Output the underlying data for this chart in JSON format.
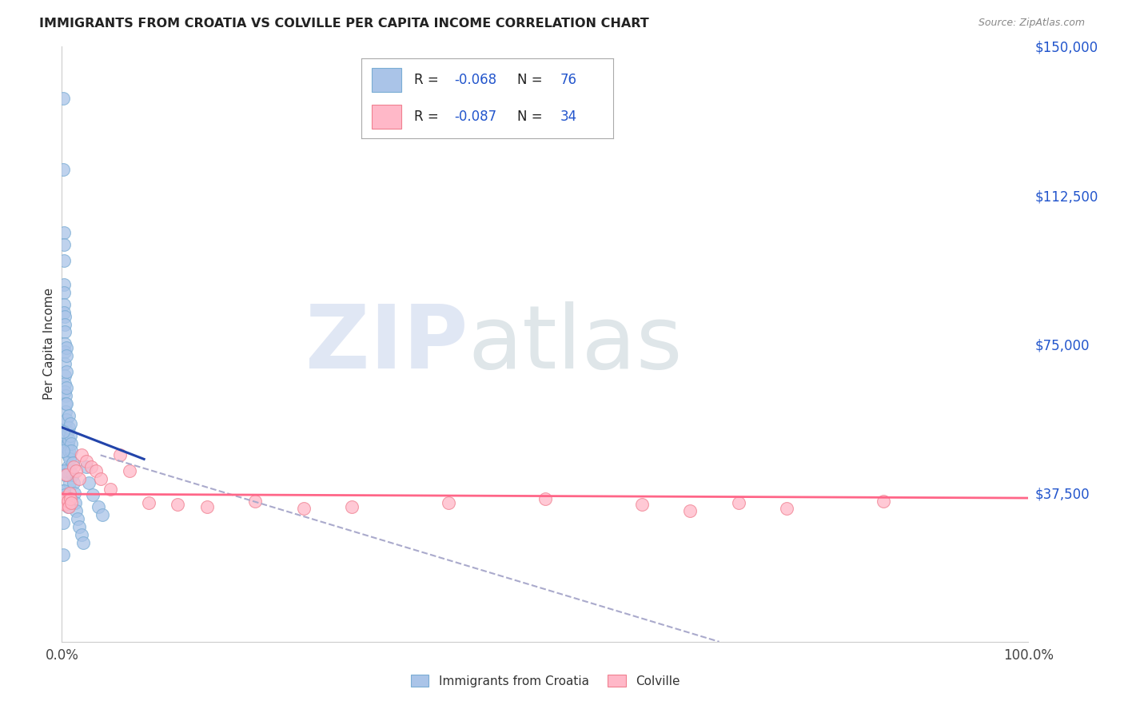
{
  "title": "IMMIGRANTS FROM CROATIA VS COLVILLE PER CAPITA INCOME CORRELATION CHART",
  "source": "Source: ZipAtlas.com",
  "ylabel": "Per Capita Income",
  "xlim": [
    0,
    1
  ],
  "ylim": [
    0,
    150000
  ],
  "yticks_right": [
    0,
    37500,
    75000,
    112500,
    150000
  ],
  "ytick_labels_right": [
    "",
    "$37,500",
    "$75,000",
    "$112,500",
    "$150,000"
  ],
  "background_color": "#ffffff",
  "grid_color": "#dddddd",
  "blue_scatter_color": "#aac4e8",
  "blue_scatter_edge": "#7aadd4",
  "pink_scatter_color": "#ffb8c8",
  "pink_scatter_edge": "#f08090",
  "blue_line_color": "#2244aa",
  "pink_line_color": "#ff6688",
  "dashed_line_color": "#aaaacc",
  "legend_box_color": "#cccccc",
  "text_color_dark": "#222222",
  "text_color_blue": "#2255cc",
  "series1_name": "Immigrants from Croatia",
  "series2_name": "Colville",
  "r1": "-0.068",
  "n1": "76",
  "r2": "-0.087",
  "n2": "34",
  "blue_trend_x": [
    0.0,
    0.085
  ],
  "blue_trend_y": [
    54000,
    46000
  ],
  "pink_trend_x": [
    0.0,
    1.0
  ],
  "pink_trend_y": [
    37200,
    36200
  ],
  "dashed_trend_x": [
    0.04,
    0.68
  ],
  "dashed_trend_y": [
    47000,
    0
  ],
  "blue_x": [
    0.001,
    0.001,
    0.001,
    0.001,
    0.001,
    0.001,
    0.001,
    0.001,
    0.002,
    0.002,
    0.002,
    0.002,
    0.002,
    0.002,
    0.002,
    0.003,
    0.003,
    0.003,
    0.003,
    0.003,
    0.003,
    0.003,
    0.003,
    0.003,
    0.004,
    0.004,
    0.004,
    0.004,
    0.004,
    0.004,
    0.005,
    0.005,
    0.005,
    0.005,
    0.005,
    0.005,
    0.006,
    0.006,
    0.006,
    0.006,
    0.006,
    0.007,
    0.007,
    0.007,
    0.007,
    0.008,
    0.008,
    0.008,
    0.009,
    0.009,
    0.01,
    0.01,
    0.011,
    0.011,
    0.012,
    0.013,
    0.014,
    0.015,
    0.016,
    0.018,
    0.02,
    0.022,
    0.025,
    0.028,
    0.032,
    0.038,
    0.001,
    0.001,
    0.002,
    0.002,
    0.003,
    0.003,
    0.004,
    0.005,
    0.006,
    0.042
  ],
  "blue_y": [
    137000,
    119000,
    50000,
    43000,
    38000,
    35000,
    30000,
    22000,
    103000,
    100000,
    96000,
    90000,
    88000,
    85000,
    83000,
    82000,
    80000,
    78000,
    75000,
    73000,
    70000,
    67000,
    65000,
    63000,
    62000,
    60000,
    58000,
    55000,
    52000,
    49000,
    74000,
    72000,
    68000,
    64000,
    60000,
    56000,
    53000,
    50000,
    47000,
    44000,
    42000,
    57000,
    54000,
    51000,
    48000,
    46000,
    43000,
    40000,
    55000,
    52000,
    50000,
    48000,
    45000,
    42000,
    40000,
    37500,
    35000,
    33000,
    31000,
    29000,
    27000,
    25000,
    44000,
    40000,
    37000,
    34000,
    53000,
    48000,
    43000,
    38000,
    42000,
    37000,
    36000,
    35000,
    34000,
    32000
  ],
  "pink_x": [
    0.001,
    0.002,
    0.003,
    0.004,
    0.005,
    0.006,
    0.007,
    0.008,
    0.009,
    0.01,
    0.012,
    0.015,
    0.018,
    0.02,
    0.025,
    0.03,
    0.035,
    0.04,
    0.05,
    0.06,
    0.07,
    0.09,
    0.12,
    0.15,
    0.2,
    0.25,
    0.3,
    0.4,
    0.5,
    0.6,
    0.65,
    0.7,
    0.75,
    0.85
  ],
  "pink_y": [
    36000,
    35000,
    34500,
    36500,
    42000,
    35500,
    34000,
    37500,
    36000,
    35000,
    44000,
    43000,
    41000,
    47000,
    45500,
    44000,
    43000,
    41000,
    38500,
    47000,
    43000,
    35000,
    34500,
    34000,
    35500,
    33500,
    34000,
    35000,
    36000,
    34500,
    33000,
    35000,
    33500,
    35500
  ]
}
